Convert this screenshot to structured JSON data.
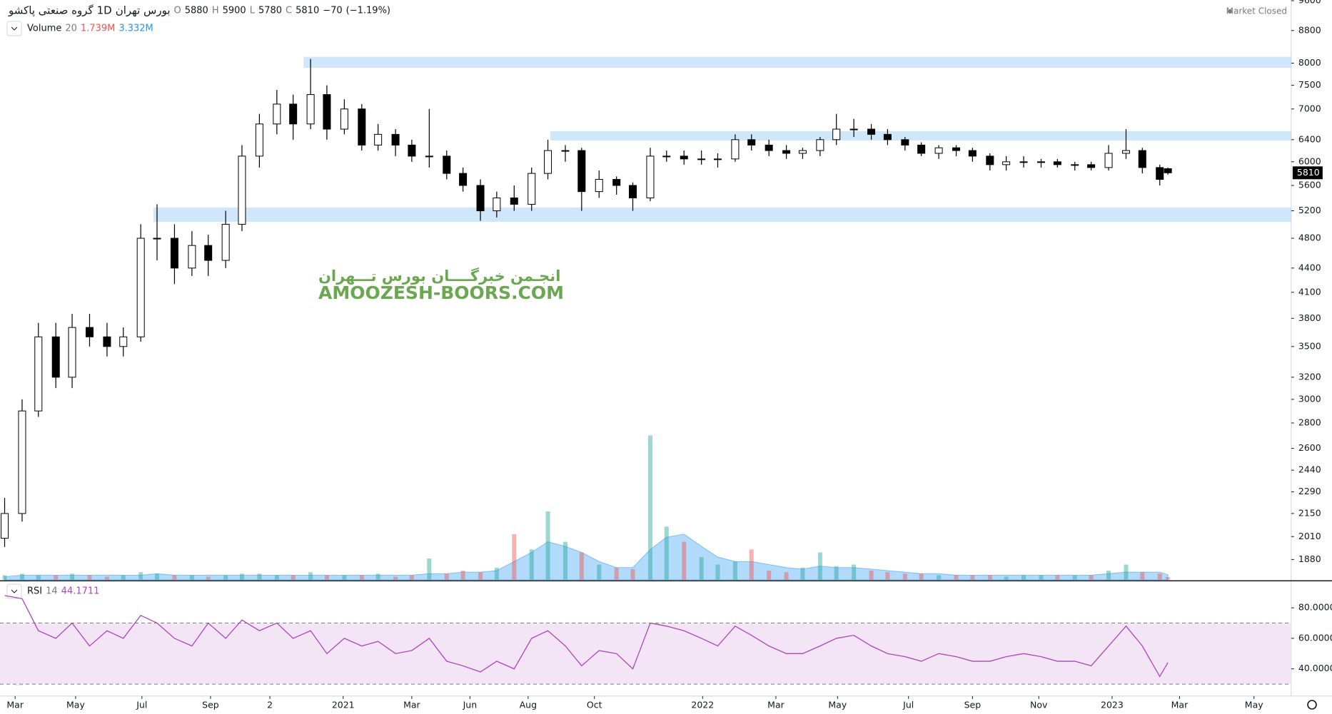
{
  "header": {
    "symbol": "گروه صنعتی پاکشو",
    "interval": "1D",
    "exchange": "بورس تهران",
    "ohlc_labels": [
      "O",
      "H",
      "L",
      "C"
    ],
    "open": 5880,
    "high": 5900,
    "low": 5780,
    "close": 5810,
    "change": {
      "value": -70,
      "label": "−70"
    },
    "change_pct": {
      "value": -1.19,
      "label": "(−1.19%)"
    },
    "status": "Market Closed"
  },
  "watermark": {
    "persian": "انجـمن خبرگــــان بورس تـــهران",
    "latin": "AMOOZESH-BOORS.COM"
  },
  "chart_data": [
    {
      "type": "candlestick",
      "x": [
        0,
        15,
        29,
        44,
        58,
        73,
        88,
        102,
        117,
        131,
        146,
        161,
        175,
        190,
        204,
        219,
        234,
        248,
        263,
        277,
        292,
        307,
        321,
        336,
        350,
        365,
        380,
        394,
        409,
        423,
        438,
        453,
        467,
        482,
        496,
        511,
        526,
        540,
        555,
        569,
        584,
        599,
        613,
        628,
        642,
        657,
        672,
        686,
        701,
        715,
        730,
        745,
        759,
        774,
        788,
        803,
        818,
        832,
        847,
        861,
        876,
        891,
        905,
        920,
        934,
        949,
        964,
        978,
        993,
        1000
      ],
      "open": [
        2000,
        2150,
        2900,
        3600,
        3200,
        3700,
        3600,
        3500,
        3600,
        4800,
        4800,
        4400,
        4700,
        4500,
        5000,
        6100,
        6700,
        7100,
        6700,
        7300,
        6600,
        7000,
        6300,
        6500,
        6300,
        6100,
        6100,
        5800,
        5600,
        5200,
        5400,
        5300,
        5800,
        6200,
        6200,
        5500,
        5700,
        5600,
        5400,
        6100,
        6100,
        6050,
        6050,
        6050,
        6400,
        6300,
        6200,
        6150,
        6200,
        6400,
        6600,
        6600,
        6500,
        6400,
        6300,
        6150,
        6250,
        6200,
        6100,
        5950,
        6000,
        6000,
        6000,
        5950,
        5950,
        5900,
        6150,
        6200,
        5900,
        5880
      ],
      "high": [
        2250,
        3000,
        3750,
        3750,
        3850,
        3850,
        3750,
        3700,
        5000,
        5300,
        5000,
        4900,
        4850,
        5200,
        6300,
        6900,
        7400,
        7300,
        8100,
        7500,
        7200,
        7100,
        6700,
        6600,
        6400,
        7000,
        6200,
        5900,
        5700,
        5500,
        5600,
        5900,
        6400,
        6300,
        6250,
        5850,
        5750,
        5650,
        6250,
        6200,
        6200,
        6200,
        6150,
        6500,
        6500,
        6400,
        6300,
        6250,
        6450,
        6900,
        6800,
        6700,
        6600,
        6450,
        6350,
        6300,
        6300,
        6250,
        6150,
        6100,
        6100,
        6050,
        6050,
        6000,
        6000,
        6300,
        6600,
        6250,
        5950,
        5900
      ],
      "low": [
        1950,
        2100,
        2850,
        3100,
        3100,
        3500,
        3400,
        3400,
        3550,
        4500,
        4200,
        4300,
        4300,
        4400,
        4900,
        5900,
        6500,
        6400,
        6600,
        6400,
        6500,
        6200,
        6200,
        6100,
        6000,
        5900,
        5700,
        5500,
        5050,
        5100,
        5200,
        5200,
        5700,
        6000,
        5200,
        5400,
        5450,
        5200,
        5350,
        6000,
        5950,
        5950,
        5900,
        6000,
        6200,
        6100,
        6050,
        6050,
        6100,
        6300,
        6450,
        6400,
        6300,
        6200,
        6100,
        6050,
        6100,
        6000,
        5850,
        5850,
        5900,
        5900,
        5900,
        5850,
        5850,
        5850,
        6050,
        5800,
        5600,
        5780
      ],
      "close": [
        2150,
        2900,
        3600,
        3200,
        3700,
        3600,
        3500,
        3600,
        4800,
        4800,
        4400,
        4700,
        4500,
        5000,
        6100,
        6700,
        7100,
        6700,
        7300,
        6600,
        7000,
        6300,
        6500,
        6300,
        6100,
        6100,
        5800,
        5600,
        5200,
        5400,
        5300,
        5800,
        6200,
        6200,
        5500,
        5700,
        5600,
        5400,
        6100,
        6100,
        6050,
        6050,
        6050,
        6400,
        6300,
        6200,
        6150,
        6200,
        6400,
        6600,
        6600,
        6500,
        6400,
        6300,
        6150,
        6250,
        6200,
        6100,
        5950,
        6000,
        6000,
        6000,
        5950,
        5950,
        5900,
        6150,
        6200,
        5900,
        5700,
        5810
      ],
      "color_up": "#ffffff",
      "color_down": "#000000",
      "xlim": [
        -4,
        1106
      ],
      "xticks": [
        {
          "value": 9,
          "label": "Mar"
        },
        {
          "value": 61,
          "label": "May"
        },
        {
          "value": 118,
          "label": "Jul"
        },
        {
          "value": 177,
          "label": "Sep"
        },
        {
          "value": 228,
          "label": "2"
        },
        {
          "value": 291,
          "label": "2021"
        },
        {
          "value": 350,
          "label": "Mar"
        },
        {
          "value": 400,
          "label": "Jun"
        },
        {
          "value": 450,
          "label": "Aug"
        },
        {
          "value": 507,
          "label": "Oct"
        },
        {
          "value": 600,
          "label": "2022"
        },
        {
          "value": 663,
          "label": "Mar"
        },
        {
          "value": 716,
          "label": "May"
        },
        {
          "value": 777,
          "label": "Jul"
        },
        {
          "value": 832,
          "label": "Sep"
        },
        {
          "value": 889,
          "label": "Nov"
        },
        {
          "value": 952,
          "label": "2023"
        },
        {
          "value": 1010,
          "label": "Mar"
        },
        {
          "value": 1074,
          "label": "May"
        }
      ],
      "ylim": [
        1772,
        9620
      ],
      "log_scale": true,
      "yticks": [
        1880,
        2010,
        2150,
        2290,
        2440,
        2600,
        2800,
        3000,
        3200,
        3500,
        3800,
        4100,
        4400,
        4800,
        5200,
        5600,
        6000,
        6400,
        7000,
        7500,
        8000,
        8800,
        9600
      ],
      "zones": [
        {
          "x_start": 257,
          "range": [
            7892,
            8150
          ]
        },
        {
          "x_start": 469,
          "range": [
            6385,
            6560
          ]
        },
        {
          "x_start": 128,
          "range": [
            5035,
            5252
          ]
        }
      ],
      "zone_color": "#cfe6fb",
      "volume": {
        "name": "Volume",
        "length": 20,
        "legend_values": [
          "1.739M",
          "3.332M"
        ],
        "values": [
          3,
          4,
          3,
          3,
          4,
          3,
          2,
          3,
          5,
          4,
          3,
          3,
          2,
          3,
          4,
          4,
          3,
          3,
          5,
          3,
          3,
          3,
          4,
          2,
          3,
          14,
          4,
          6,
          5,
          8,
          30,
          20,
          45,
          25,
          18,
          10,
          8,
          7,
          95,
          35,
          25,
          15,
          10,
          12,
          20,
          6,
          5,
          8,
          18,
          9,
          10,
          6,
          5,
          4,
          4,
          3,
          3,
          3,
          3,
          2,
          3,
          3,
          3,
          3,
          3,
          6,
          10,
          5,
          4,
          1.739
        ],
        "ma": [
          2,
          3,
          3,
          3,
          3,
          3,
          3,
          3,
          3,
          4,
          3,
          3,
          3,
          3,
          3,
          3,
          3,
          3,
          3,
          3,
          3,
          3,
          3,
          3,
          3,
          4,
          4,
          5,
          5,
          6,
          12,
          18,
          25,
          22,
          18,
          12,
          8,
          8,
          20,
          28,
          30,
          22,
          15,
          12,
          12,
          10,
          8,
          7,
          9,
          8,
          8,
          7,
          6,
          5,
          4,
          4,
          3,
          3,
          3,
          3,
          3,
          3,
          3,
          3,
          3,
          4,
          5,
          5,
          5,
          3.332
        ],
        "up_color": "#26a69a",
        "down_color": "#ef5350",
        "ma_color": "#2196f3"
      }
    },
    {
      "type": "line",
      "title": "RSI",
      "length": 14,
      "values": [
        88,
        86,
        65,
        60,
        70,
        55,
        65,
        60,
        75,
        70,
        60,
        55,
        70,
        60,
        72,
        65,
        70,
        60,
        65,
        50,
        60,
        55,
        58,
        50,
        52,
        60,
        45,
        42,
        38,
        45,
        40,
        60,
        65,
        55,
        42,
        52,
        50,
        40,
        70,
        68,
        65,
        60,
        55,
        68,
        62,
        55,
        50,
        50,
        55,
        60,
        62,
        55,
        50,
        48,
        45,
        50,
        48,
        45,
        45,
        48,
        50,
        48,
        45,
        45,
        42,
        55,
        68,
        55,
        35,
        44.1711
      ],
      "color": "#ab47bc",
      "band": [
        30,
        70
      ],
      "band_color": "#f3e5f5",
      "ylim": [
        22.2,
        96.7
      ],
      "yticks": [
        {
          "value": 40,
          "label": "40.0000"
        },
        {
          "value": 60,
          "label": "60.0000"
        },
        {
          "value": 80,
          "label": "80.0000"
        }
      ]
    }
  ]
}
